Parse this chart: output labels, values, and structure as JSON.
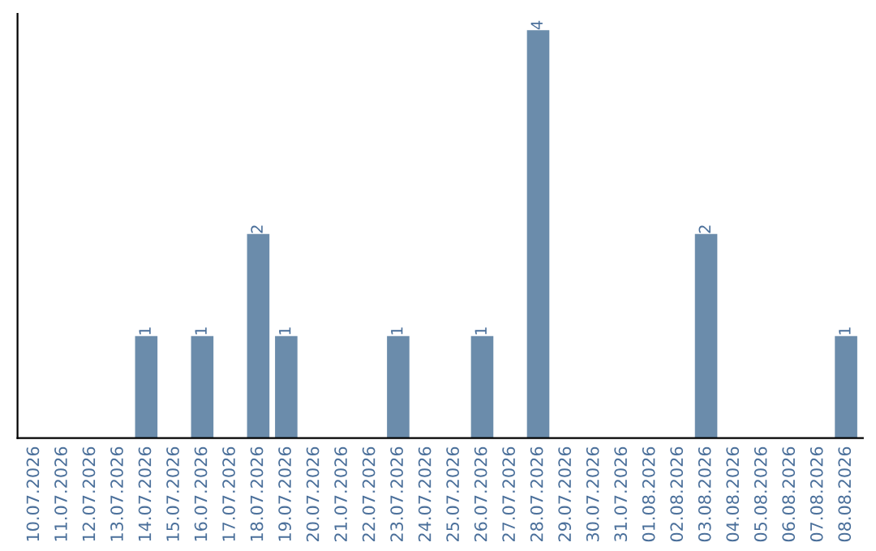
{
  "chart_data": {
    "type": "bar",
    "categories": [
      "10.07.2026",
      "11.07.2026",
      "12.07.2026",
      "13.07.2026",
      "14.07.2026",
      "15.07.2026",
      "16.07.2026",
      "17.07.2026",
      "18.07.2026",
      "19.07.2026",
      "20.07.2026",
      "21.07.2026",
      "22.07.2026",
      "23.07.2026",
      "24.07.2026",
      "25.07.2026",
      "26.07.2026",
      "27.07.2026",
      "28.07.2026",
      "29.07.2026",
      "30.07.2026",
      "31.07.2026",
      "01.08.2026",
      "02.08.2026",
      "03.08.2026",
      "04.08.2026",
      "05.08.2026",
      "06.08.2026",
      "07.08.2026",
      "08.08.2026"
    ],
    "values": [
      0,
      0,
      0,
      0,
      1,
      0,
      1,
      0,
      2,
      1,
      0,
      0,
      0,
      1,
      0,
      0,
      1,
      0,
      4,
      0,
      0,
      0,
      0,
      0,
      2,
      0,
      0,
      0,
      0,
      1
    ],
    "value_labels": [
      null,
      null,
      null,
      null,
      "1",
      null,
      "1",
      null,
      "2",
      "1",
      null,
      null,
      null,
      "1",
      null,
      null,
      "1",
      null,
      "4",
      null,
      null,
      null,
      null,
      null,
      "2",
      null,
      null,
      null,
      null,
      "1"
    ],
    "color": "#6b8cab",
    "tick_labels": "x",
    "grid": false,
    "legend": false
  }
}
